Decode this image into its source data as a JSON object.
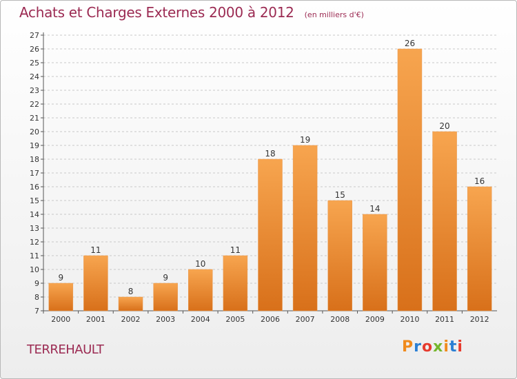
{
  "title": "Achats et Charges Externes 2000 à 2012",
  "unit": "(en milliers d'€)",
  "commune": "TERREHAULT",
  "brand": "Proxiti",
  "colors": {
    "title": "#9b2a52",
    "bar_light": "#f7a54f",
    "bar_dark": "#d8701a",
    "grid": "#c8c8c8"
  },
  "chart_data": {
    "type": "bar",
    "title": "Achats et Charges Externes 2000 à 2012",
    "xlabel": "",
    "ylabel": "",
    "categories": [
      "2000",
      "2001",
      "2002",
      "2003",
      "2004",
      "2005",
      "2006",
      "2007",
      "2008",
      "2009",
      "2010",
      "2011",
      "2012"
    ],
    "values": [
      9,
      11,
      8,
      9,
      10,
      11,
      18,
      19,
      15,
      14,
      26,
      20,
      16
    ],
    "ylim": [
      7,
      27
    ],
    "yticks": [
      7,
      8,
      9,
      10,
      11,
      12,
      13,
      14,
      15,
      16,
      17,
      18,
      19,
      20,
      21,
      22,
      23,
      24,
      25,
      26,
      27
    ],
    "grid": "horizontal dashed",
    "data_labels": true
  }
}
